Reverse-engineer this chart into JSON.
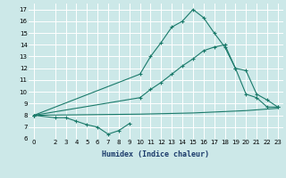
{
  "xlabel": "Humidex (Indice chaleur)",
  "bg_color": "#cce8e8",
  "grid_color": "#ffffff",
  "line_color": "#1a7a6a",
  "xlim": [
    -0.5,
    23.5
  ],
  "ylim": [
    6,
    17.5
  ],
  "xtick_labels": [
    "0",
    "2",
    "3",
    "4",
    "5",
    "6",
    "7",
    "8",
    "9",
    "10",
    "11",
    "12",
    "13",
    "14",
    "15",
    "16",
    "17",
    "18",
    "19",
    "20",
    "21",
    "22",
    "23"
  ],
  "xtick_pos": [
    0,
    2,
    3,
    4,
    5,
    6,
    7,
    8,
    9,
    10,
    11,
    12,
    13,
    14,
    15,
    16,
    17,
    18,
    19,
    20,
    21,
    22,
    23
  ],
  "yticks": [
    6,
    7,
    8,
    9,
    10,
    11,
    12,
    13,
    14,
    15,
    16,
    17
  ],
  "line1_x": [
    0,
    2,
    3,
    4,
    5,
    6,
    7,
    8,
    9
  ],
  "line1_y": [
    8.0,
    7.8,
    7.8,
    7.5,
    7.2,
    7.0,
    6.4,
    6.7,
    7.3
  ],
  "line2_x": [
    0,
    10,
    11,
    12,
    13,
    14,
    15,
    16,
    17,
    18,
    19,
    20,
    21,
    22,
    23
  ],
  "line2_y": [
    8.0,
    11.5,
    13.0,
    14.2,
    15.5,
    16.0,
    17.0,
    16.3,
    15.0,
    13.8,
    12.0,
    9.8,
    9.5,
    8.7,
    8.7
  ],
  "line3_x": [
    0,
    10,
    11,
    12,
    13,
    14,
    15,
    16,
    17,
    18,
    19,
    20,
    21,
    22,
    23
  ],
  "line3_y": [
    8.0,
    9.5,
    10.2,
    10.8,
    11.5,
    12.2,
    12.8,
    13.5,
    13.8,
    14.0,
    12.0,
    11.8,
    9.8,
    9.3,
    8.7
  ],
  "line4_x": [
    0,
    10,
    15,
    20,
    23
  ],
  "line4_y": [
    8.0,
    8.1,
    8.2,
    8.4,
    8.6
  ],
  "xlabel_fontsize": 6,
  "tick_fontsize": 5
}
